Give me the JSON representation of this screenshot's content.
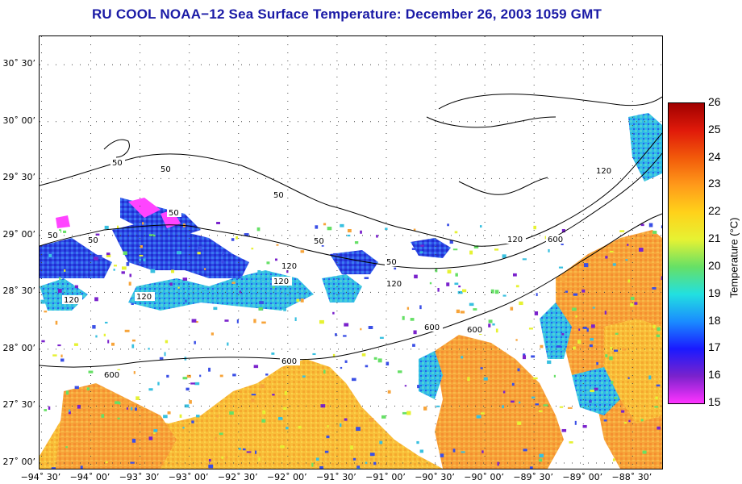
{
  "title": "RU COOL  NOAA−12  Sea Surface Temperature:  December 26, 2003 1059 GMT",
  "map": {
    "lat_labels": [
      {
        "text": "30˚ 30’",
        "value": 30.5
      },
      {
        "text": "30˚ 00’",
        "value": 30.0
      },
      {
        "text": "29˚ 30’",
        "value": 29.5
      },
      {
        "text": "29˚ 00’",
        "value": 29.0
      },
      {
        "text": "28˚ 30’",
        "value": 28.5
      },
      {
        "text": "28˚ 00’",
        "value": 28.0
      },
      {
        "text": "27˚ 30’",
        "value": 27.5
      },
      {
        "text": "27˚ 00’",
        "value": 27.0
      }
    ],
    "lon_labels": [
      {
        "text": "−94˚ 30’",
        "value": -94.5
      },
      {
        "text": "−94˚ 00’",
        "value": -94.0
      },
      {
        "text": "−93˚ 30’",
        "value": -93.5
      },
      {
        "text": "−93˚ 00’",
        "value": -93.0
      },
      {
        "text": "−92˚ 30’",
        "value": -92.5
      },
      {
        "text": "−92˚ 00’",
        "value": -92.0
      },
      {
        "text": "−91˚ 30’",
        "value": -91.5
      },
      {
        "text": "−91˚ 00’",
        "value": -91.0
      },
      {
        "text": "−90˚ 30’",
        "value": -90.5
      },
      {
        "text": "−90˚ 00’",
        "value": -90.0
      },
      {
        "text": "−89˚ 30’",
        "value": -89.5
      },
      {
        "text": "−89˚ 00’",
        "value": -89.0
      },
      {
        "text": "−88˚ 30’",
        "value": -88.5
      }
    ],
    "lat_range": [
      26.95,
      30.75
    ],
    "lon_range": [
      -94.52,
      -88.2
    ],
    "contour_labels": [
      "50",
      "120",
      "600"
    ]
  },
  "colorbar": {
    "title": "Temperature (°C)",
    "min": 15,
    "max": 26,
    "ticks": [
      "26",
      "25",
      "24",
      "23",
      "22",
      "21",
      "20",
      "19",
      "18",
      "17",
      "16",
      "15"
    ],
    "stops": [
      "#ff33ff",
      "#7a22cc",
      "#1a1aff",
      "#1a8cff",
      "#22e0e0",
      "#66e066",
      "#e6f233",
      "#ffd21a",
      "#ff9a1a",
      "#f25a0a",
      "#e01a0a",
      "#a00000"
    ]
  },
  "colors": {
    "title": "#1a1aa6",
    "warm_water": "#f7a43a",
    "cool_water": "#2b3fe0"
  }
}
